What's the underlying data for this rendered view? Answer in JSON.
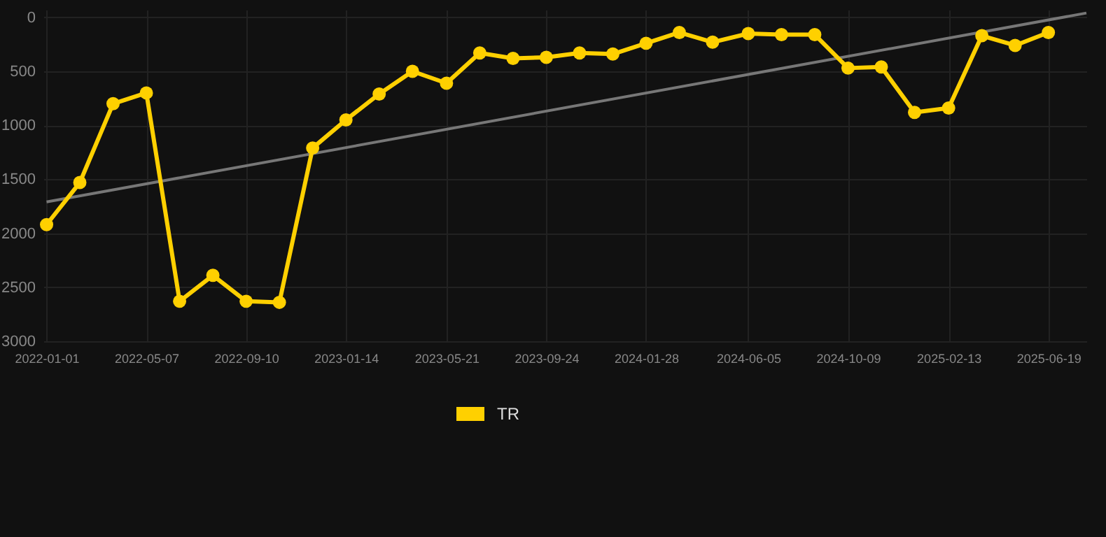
{
  "chart_data": {
    "type": "line",
    "xlim": [
      "2021-12-28",
      "2025-08-06"
    ],
    "ylim": [
      3000,
      -70
    ],
    "xticks": [
      "2022-01-01",
      "2022-05-07",
      "2022-09-10",
      "2023-01-14",
      "2023-05-21",
      "2023-09-24",
      "2024-01-28",
      "2024-06-05",
      "2024-10-09",
      "2025-02-13",
      "2025-06-19"
    ],
    "yticks": [
      0,
      500,
      1000,
      1500,
      2000,
      2500,
      3000
    ],
    "grid": true,
    "legend": "bottom",
    "marker": "circle",
    "series": [
      {
        "type": "line",
        "color": "#777777",
        "marker": "none",
        "x": [
          "2022-01-01",
          "2025-08-06"
        ],
        "values": [
          1710,
          -40
        ]
      },
      {
        "name": "TR",
        "color": "#ffd000",
        "x": [
          "2022-01-01",
          "2022-02-12",
          "2022-03-26",
          "2022-05-07",
          "2022-06-18",
          "2022-07-30",
          "2022-09-10",
          "2022-10-22",
          "2022-12-03",
          "2023-01-14",
          "2023-02-25",
          "2023-04-08",
          "2023-05-21",
          "2023-07-02",
          "2023-08-13",
          "2023-09-24",
          "2023-11-05",
          "2023-12-17",
          "2024-01-28",
          "2024-03-10",
          "2024-04-21",
          "2024-06-05",
          "2024-07-17",
          "2024-08-28",
          "2024-10-09",
          "2024-11-20",
          "2025-01-01",
          "2025-02-13",
          "2025-03-27",
          "2025-05-08",
          "2025-06-19"
        ],
        "values": [
          1920,
          1530,
          800,
          700,
          2630,
          2390,
          2630,
          2640,
          1210,
          950,
          710,
          500,
          610,
          330,
          380,
          370,
          330,
          340,
          240,
          140,
          230,
          150,
          160,
          160,
          470,
          460,
          880,
          840,
          170,
          260,
          140
        ]
      }
    ]
  }
}
